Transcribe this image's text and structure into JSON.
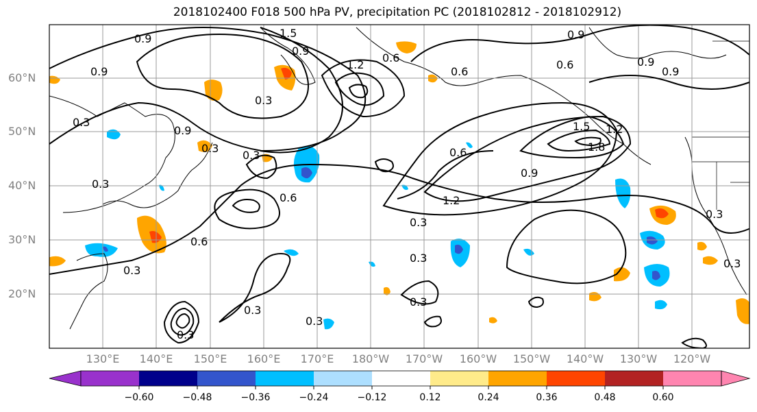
{
  "title": "2018102400 F018 500 hPa PV, precipitation PC (2018102812 - 2018102912)",
  "lat_labels": [
    "60°N",
    "50°N",
    "40°N",
    "30°N",
    "20°N"
  ],
  "lon_labels": [
    "130°E",
    "140°E",
    "150°E",
    "160°E",
    "170°E",
    "180°W",
    "170°W",
    "160°W",
    "150°W",
    "140°W",
    "130°W",
    "120°W"
  ],
  "colorbar": {
    "colors": [
      "#9932CC",
      "#00008B",
      "#3355CC",
      "#00BFFF",
      "#ADDFFF",
      "#FFFFFF",
      "#FFEB8A",
      "#FFA500",
      "#FF4500",
      "#B22222",
      "#FF85B0"
    ],
    "ticks": [
      "−0.60",
      "−0.48",
      "−0.36",
      "−0.24",
      "−0.12",
      "0.12",
      "0.24",
      "0.36",
      "0.48",
      "0.60"
    ]
  },
  "contour_labels": [
    "0.9",
    "1.5",
    "0.9",
    "0.6",
    "1.2",
    "0.9",
    "0.9",
    "0.6",
    "0.9",
    "0.6",
    "0.9",
    "0.3",
    "0.9",
    "0.3",
    "0.3",
    "0.3",
    "1.5",
    "1.2",
    "1.8",
    "0.6",
    "0.9",
    "0.6",
    "1.2",
    "0.3",
    "0.6",
    "0.3",
    "0.3",
    "0.3",
    "0.3",
    "0.3",
    "0.3",
    "0.3",
    "0.3",
    "0.3"
  ]
}
